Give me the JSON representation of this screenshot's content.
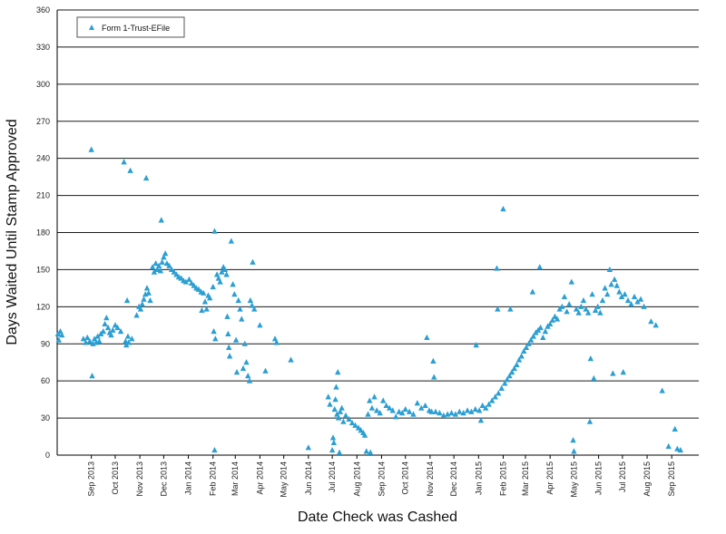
{
  "chart_data": {
    "type": "scatter",
    "xlabel": "Date Check was Cashed",
    "ylabel": "Days Waited Until Stamp Approved",
    "ylim": [
      0,
      360
    ],
    "yticks": [
      0,
      30,
      60,
      90,
      120,
      150,
      180,
      210,
      240,
      270,
      300,
      330,
      360
    ],
    "xlim": [
      "2013-07-20",
      "2015-10-05"
    ],
    "xticks": [
      {
        "date": "2013-09-01",
        "label": "Sep 2013"
      },
      {
        "date": "2013-10-01",
        "label": "Oct 2013"
      },
      {
        "date": "2013-11-01",
        "label": "Nov 2013"
      },
      {
        "date": "2013-12-01",
        "label": "Dec 2013"
      },
      {
        "date": "2014-01-01",
        "label": "Jan 2014"
      },
      {
        "date": "2014-02-01",
        "label": "Feb 2014"
      },
      {
        "date": "2014-03-01",
        "label": "Mar 2014"
      },
      {
        "date": "2014-04-01",
        "label": "Apr 2014"
      },
      {
        "date": "2014-05-01",
        "label": "May 2014"
      },
      {
        "date": "2014-06-01",
        "label": "Jun 2014"
      },
      {
        "date": "2014-07-01",
        "label": "Jul 2014"
      },
      {
        "date": "2014-08-01",
        "label": "Aug 2014"
      },
      {
        "date": "2014-09-01",
        "label": "Sep 2014"
      },
      {
        "date": "2014-10-01",
        "label": "Oct 2014"
      },
      {
        "date": "2014-11-01",
        "label": "Nov 2014"
      },
      {
        "date": "2014-12-01",
        "label": "Dec 2014"
      },
      {
        "date": "2015-01-01",
        "label": "Jan 2015"
      },
      {
        "date": "2015-02-01",
        "label": "Feb 2015"
      },
      {
        "date": "2015-03-01",
        "label": "Mar 2015"
      },
      {
        "date": "2015-04-01",
        "label": "Apr 2015"
      },
      {
        "date": "2015-05-01",
        "label": "May 2015"
      },
      {
        "date": "2015-06-01",
        "label": "Jun 2015"
      },
      {
        "date": "2015-07-01",
        "label": "Jul 2015"
      },
      {
        "date": "2015-08-01",
        "label": "Aug 2015"
      },
      {
        "date": "2015-09-01",
        "label": "Sep 2015"
      }
    ],
    "grid": {
      "horizontal": true,
      "vertical": false
    },
    "legend_position": "top-left",
    "series": [
      {
        "name": "Form 1-Trust-EFile",
        "color": "#2b9fd3",
        "marker": "triangle",
        "points": [
          [
            "2013-07-21",
            98
          ],
          [
            "2013-07-22",
            93
          ],
          [
            "2013-07-24",
            100
          ],
          [
            "2013-07-26",
            97
          ],
          [
            "2013-08-22",
            94
          ],
          [
            "2013-08-25",
            91
          ],
          [
            "2013-08-27",
            95
          ],
          [
            "2013-08-30",
            92
          ],
          [
            "2013-09-01",
            247
          ],
          [
            "2013-09-02",
            64
          ],
          [
            "2013-09-03",
            90
          ],
          [
            "2013-09-05",
            94
          ],
          [
            "2013-09-07",
            91
          ],
          [
            "2013-09-09",
            96
          ],
          [
            "2013-09-11",
            92
          ],
          [
            "2013-09-13",
            98
          ],
          [
            "2013-09-16",
            100
          ],
          [
            "2013-09-18",
            106
          ],
          [
            "2013-09-20",
            111
          ],
          [
            "2013-09-22",
            103
          ],
          [
            "2013-09-24",
            99
          ],
          [
            "2013-09-26",
            97
          ],
          [
            "2013-09-28",
            101
          ],
          [
            "2013-10-01",
            105
          ],
          [
            "2013-10-04",
            103
          ],
          [
            "2013-10-08",
            100
          ],
          [
            "2013-10-12",
            237
          ],
          [
            "2013-10-14",
            92
          ],
          [
            "2013-10-15",
            89
          ],
          [
            "2013-10-16",
            125
          ],
          [
            "2013-10-17",
            96
          ],
          [
            "2013-10-18",
            91
          ],
          [
            "2013-10-20",
            230
          ],
          [
            "2013-10-22",
            94
          ],
          [
            "2013-10-28",
            113
          ],
          [
            "2013-10-31",
            120
          ],
          [
            "2013-11-02",
            118
          ],
          [
            "2013-11-04",
            122
          ],
          [
            "2013-11-06",
            126
          ],
          [
            "2013-11-08",
            130
          ],
          [
            "2013-11-09",
            224
          ],
          [
            "2013-11-10",
            135
          ],
          [
            "2013-11-12",
            131
          ],
          [
            "2013-11-14",
            125
          ],
          [
            "2013-11-17",
            152
          ],
          [
            "2013-11-19",
            148
          ],
          [
            "2013-11-21",
            155
          ],
          [
            "2013-11-23",
            150
          ],
          [
            "2013-11-25",
            153
          ],
          [
            "2013-11-27",
            149
          ],
          [
            "2013-11-28",
            190
          ],
          [
            "2013-11-29",
            156
          ],
          [
            "2013-12-01",
            160
          ],
          [
            "2013-12-03",
            163
          ],
          [
            "2013-12-05",
            155
          ],
          [
            "2013-12-08",
            153
          ],
          [
            "2013-12-11",
            150
          ],
          [
            "2013-12-14",
            148
          ],
          [
            "2013-12-17",
            146
          ],
          [
            "2013-12-20",
            144
          ],
          [
            "2013-12-23",
            143
          ],
          [
            "2013-12-26",
            141
          ],
          [
            "2013-12-29",
            140
          ],
          [
            "2014-01-02",
            142
          ],
          [
            "2014-01-05",
            139
          ],
          [
            "2014-01-08",
            137
          ],
          [
            "2014-01-11",
            135
          ],
          [
            "2014-01-14",
            134
          ],
          [
            "2014-01-17",
            132
          ],
          [
            "2014-01-18",
            117
          ],
          [
            "2014-01-20",
            131
          ],
          [
            "2014-01-22",
            124
          ],
          [
            "2014-01-24",
            118
          ],
          [
            "2014-01-26",
            129
          ],
          [
            "2014-01-28",
            127
          ],
          [
            "2014-02-01",
            136
          ],
          [
            "2014-02-02",
            100
          ],
          [
            "2014-02-03",
            181
          ],
          [
            "2014-02-03",
            4
          ],
          [
            "2014-02-04",
            94
          ],
          [
            "2014-02-06",
            146
          ],
          [
            "2014-02-08",
            143
          ],
          [
            "2014-02-10",
            140
          ],
          [
            "2014-02-12",
            148
          ],
          [
            "2014-02-14",
            152
          ],
          [
            "2014-02-16",
            150
          ],
          [
            "2014-02-18",
            146
          ],
          [
            "2014-02-19",
            112
          ],
          [
            "2014-02-20",
            98
          ],
          [
            "2014-02-21",
            87
          ],
          [
            "2014-02-22",
            80
          ],
          [
            "2014-02-24",
            173
          ],
          [
            "2014-02-26",
            138
          ],
          [
            "2014-02-28",
            130
          ],
          [
            "2014-03-02",
            93
          ],
          [
            "2014-03-03",
            67
          ],
          [
            "2014-03-05",
            125
          ],
          [
            "2014-03-07",
            118
          ],
          [
            "2014-03-09",
            110
          ],
          [
            "2014-03-11",
            70
          ],
          [
            "2014-03-13",
            90
          ],
          [
            "2014-03-15",
            75
          ],
          [
            "2014-03-17",
            64
          ],
          [
            "2014-03-19",
            60
          ],
          [
            "2014-03-20",
            125
          ],
          [
            "2014-03-22",
            121
          ],
          [
            "2014-03-23",
            156
          ],
          [
            "2014-03-25",
            118
          ],
          [
            "2014-04-01",
            105
          ],
          [
            "2014-04-08",
            68
          ],
          [
            "2014-04-20",
            94
          ],
          [
            "2014-04-22",
            91
          ],
          [
            "2014-05-10",
            77
          ],
          [
            "2014-06-01",
            6
          ],
          [
            "2014-06-26",
            47
          ],
          [
            "2014-06-28",
            41
          ],
          [
            "2014-07-01",
            4
          ],
          [
            "2014-07-02",
            14
          ],
          [
            "2014-07-03",
            10
          ],
          [
            "2014-07-04",
            37
          ],
          [
            "2014-07-05",
            45
          ],
          [
            "2014-07-06",
            55
          ],
          [
            "2014-07-07",
            33
          ],
          [
            "2014-07-08",
            67
          ],
          [
            "2014-07-09",
            30
          ],
          [
            "2014-07-10",
            2
          ],
          [
            "2014-07-11",
            35
          ],
          [
            "2014-07-13",
            38
          ],
          [
            "2014-07-15",
            27
          ],
          [
            "2014-07-18",
            32
          ],
          [
            "2014-07-22",
            29
          ],
          [
            "2014-07-26",
            26
          ],
          [
            "2014-07-30",
            24
          ],
          [
            "2014-08-03",
            22
          ],
          [
            "2014-08-06",
            20
          ],
          [
            "2014-08-09",
            18
          ],
          [
            "2014-08-11",
            16
          ],
          [
            "2014-08-13",
            3
          ],
          [
            "2014-08-15",
            33
          ],
          [
            "2014-08-17",
            44
          ],
          [
            "2014-08-18",
            2
          ],
          [
            "2014-08-20",
            38
          ],
          [
            "2014-08-23",
            47
          ],
          [
            "2014-08-26",
            36
          ],
          [
            "2014-08-30",
            34
          ],
          [
            "2014-09-03",
            44
          ],
          [
            "2014-09-07",
            40
          ],
          [
            "2014-09-11",
            38
          ],
          [
            "2014-09-15",
            36
          ],
          [
            "2014-09-19",
            31
          ],
          [
            "2014-09-23",
            35
          ],
          [
            "2014-09-27",
            34
          ],
          [
            "2014-10-01",
            37
          ],
          [
            "2014-10-06",
            35
          ],
          [
            "2014-10-11",
            33
          ],
          [
            "2014-10-16",
            42
          ],
          [
            "2014-10-21",
            38
          ],
          [
            "2014-10-26",
            40
          ],
          [
            "2014-10-28",
            95
          ],
          [
            "2014-10-31",
            36
          ],
          [
            "2014-11-03",
            35
          ],
          [
            "2014-11-05",
            76
          ],
          [
            "2014-11-06",
            63
          ],
          [
            "2014-11-08",
            35
          ],
          [
            "2014-11-13",
            34
          ],
          [
            "2014-11-18",
            32
          ],
          [
            "2014-11-23",
            33
          ],
          [
            "2014-11-28",
            34
          ],
          [
            "2014-12-03",
            33
          ],
          [
            "2014-12-08",
            35
          ],
          [
            "2014-12-13",
            34
          ],
          [
            "2014-12-18",
            36
          ],
          [
            "2014-12-23",
            35
          ],
          [
            "2014-12-28",
            37
          ],
          [
            "2014-12-29",
            89
          ],
          [
            "2015-01-02",
            36
          ],
          [
            "2015-01-04",
            28
          ],
          [
            "2015-01-06",
            40
          ],
          [
            "2015-01-10",
            38
          ],
          [
            "2015-01-14",
            41
          ],
          [
            "2015-01-18",
            44
          ],
          [
            "2015-01-22",
            47
          ],
          [
            "2015-01-24",
            151
          ],
          [
            "2015-01-25",
            118
          ],
          [
            "2015-01-26",
            50
          ],
          [
            "2015-01-30",
            54
          ],
          [
            "2015-02-01",
            199
          ],
          [
            "2015-02-03",
            58
          ],
          [
            "2015-02-06",
            61
          ],
          [
            "2015-02-09",
            64
          ],
          [
            "2015-02-10",
            118
          ],
          [
            "2015-02-12",
            67
          ],
          [
            "2015-02-15",
            70
          ],
          [
            "2015-02-18",
            73
          ],
          [
            "2015-02-21",
            77
          ],
          [
            "2015-02-24",
            80
          ],
          [
            "2015-02-27",
            84
          ],
          [
            "2015-03-02",
            87
          ],
          [
            "2015-03-05",
            90
          ],
          [
            "2015-03-08",
            93
          ],
          [
            "2015-03-10",
            132
          ],
          [
            "2015-03-11",
            96
          ],
          [
            "2015-03-14",
            99
          ],
          [
            "2015-03-17",
            101
          ],
          [
            "2015-03-19",
            152
          ],
          [
            "2015-03-20",
            103
          ],
          [
            "2015-03-23",
            95
          ],
          [
            "2015-03-26",
            100
          ],
          [
            "2015-03-29",
            104
          ],
          [
            "2015-04-01",
            106
          ],
          [
            "2015-04-04",
            109
          ],
          [
            "2015-04-07",
            112
          ],
          [
            "2015-04-10",
            110
          ],
          [
            "2015-04-13",
            118
          ],
          [
            "2015-04-16",
            120
          ],
          [
            "2015-04-19",
            128
          ],
          [
            "2015-04-22",
            116
          ],
          [
            "2015-04-25",
            122
          ],
          [
            "2015-04-28",
            140
          ],
          [
            "2015-04-30",
            12
          ],
          [
            "2015-05-01",
            3
          ],
          [
            "2015-05-04",
            118
          ],
          [
            "2015-05-07",
            115
          ],
          [
            "2015-05-10",
            120
          ],
          [
            "2015-05-13",
            125
          ],
          [
            "2015-05-16",
            118
          ],
          [
            "2015-05-19",
            115
          ],
          [
            "2015-05-21",
            27
          ],
          [
            "2015-05-22",
            78
          ],
          [
            "2015-05-24",
            130
          ],
          [
            "2015-05-26",
            62
          ],
          [
            "2015-05-28",
            117
          ],
          [
            "2015-05-31",
            120
          ],
          [
            "2015-06-03",
            115
          ],
          [
            "2015-06-06",
            125
          ],
          [
            "2015-06-09",
            135
          ],
          [
            "2015-06-12",
            130
          ],
          [
            "2015-06-15",
            150
          ],
          [
            "2015-06-17",
            138
          ],
          [
            "2015-06-19",
            66
          ],
          [
            "2015-06-21",
            142
          ],
          [
            "2015-06-24",
            137
          ],
          [
            "2015-06-27",
            132
          ],
          [
            "2015-06-30",
            128
          ],
          [
            "2015-07-02",
            67
          ],
          [
            "2015-07-04",
            130
          ],
          [
            "2015-07-08",
            125
          ],
          [
            "2015-07-12",
            122
          ],
          [
            "2015-07-16",
            128
          ],
          [
            "2015-07-20",
            124
          ],
          [
            "2015-07-24",
            126
          ],
          [
            "2015-07-28",
            120
          ],
          [
            "2015-08-06",
            108
          ],
          [
            "2015-08-12",
            105
          ],
          [
            "2015-08-20",
            52
          ],
          [
            "2015-08-28",
            7
          ],
          [
            "2015-09-05",
            21
          ],
          [
            "2015-09-08",
            5
          ],
          [
            "2015-09-12",
            4
          ]
        ]
      }
    ]
  }
}
